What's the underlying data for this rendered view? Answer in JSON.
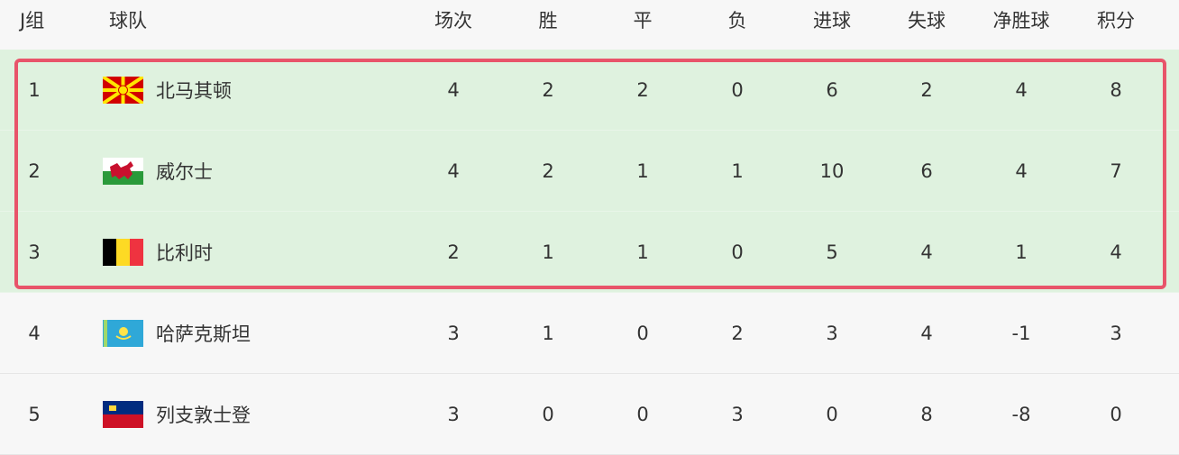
{
  "header": {
    "group": "J组",
    "team": "球队",
    "cols": [
      "场次",
      "胜",
      "平",
      "负",
      "进球",
      "失球",
      "净胜球",
      "积分"
    ]
  },
  "rows": [
    {
      "rank": "1",
      "team": "北马其顿",
      "flag": "north-macedonia-flag",
      "stats": [
        "4",
        "2",
        "2",
        "0",
        "6",
        "2",
        "4",
        "8"
      ],
      "qualified": true
    },
    {
      "rank": "2",
      "team": "威尔士",
      "flag": "wales-flag",
      "stats": [
        "4",
        "2",
        "1",
        "1",
        "10",
        "6",
        "4",
        "7"
      ],
      "qualified": true
    },
    {
      "rank": "3",
      "team": "比利时",
      "flag": "belgium-flag",
      "stats": [
        "2",
        "1",
        "1",
        "0",
        "5",
        "4",
        "1",
        "4"
      ],
      "qualified": true
    },
    {
      "rank": "4",
      "team": "哈萨克斯坦",
      "flag": "kazakhstan-flag",
      "stats": [
        "3",
        "1",
        "0",
        "2",
        "3",
        "4",
        "-1",
        "3"
      ],
      "qualified": false
    },
    {
      "rank": "5",
      "team": "列支敦士登",
      "flag": "liechtenstein-flag",
      "stats": [
        "3",
        "0",
        "0",
        "3",
        "0",
        "8",
        "-8",
        "0"
      ],
      "qualified": false
    }
  ],
  "colors": {
    "highlight_bg": "#dff2df",
    "highlight_border": "#e8546a"
  }
}
